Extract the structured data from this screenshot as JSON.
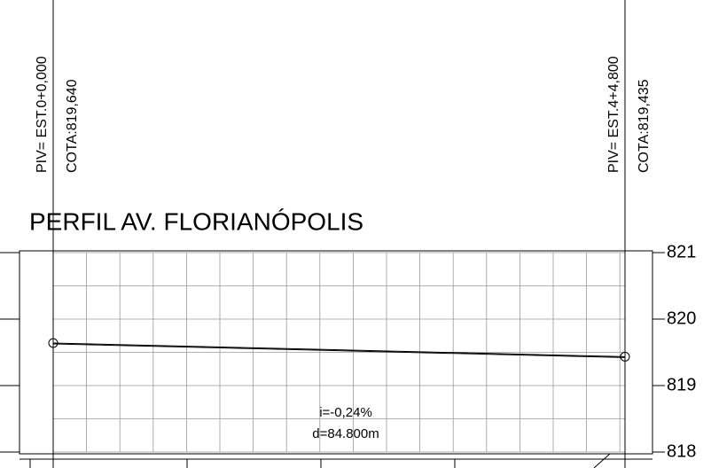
{
  "chart_data": {
    "type": "line",
    "title": "PERFIL AV. FLORIANÓPOLIS",
    "categories": [
      "PIV= EST.0+0,000",
      "PIV= EST.4+4,800"
    ],
    "values": [
      819.64,
      819.435
    ],
    "value_labels": [
      "COTA:819,640",
      "COTA:819,435"
    ],
    "color": "#c030d0",
    "ylim": [
      818,
      821
    ],
    "yticks": [
      818,
      819,
      820,
      821
    ],
    "grid": true,
    "annotations": [
      "i=-0,24%",
      "d=84.800m"
    ]
  }
}
